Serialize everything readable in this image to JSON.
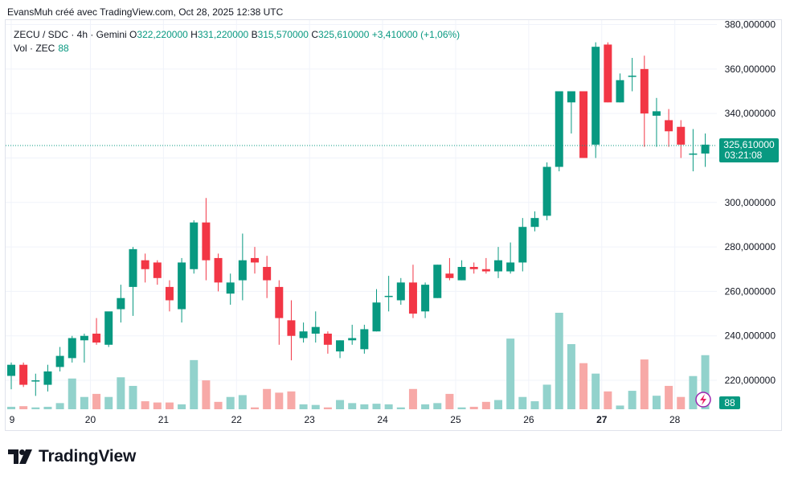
{
  "header": {
    "caption": "EvansMuh créé avec TradingView.com, Oct 28, 2025 12:38 UTC"
  },
  "legend": {
    "symbol": "ZECU / SDC · 4h · Gemini",
    "open_label": "O",
    "open": "322,220000",
    "high_label": "H",
    "high": "331,220000",
    "low_label": "B",
    "low": "315,570000",
    "close_label": "C",
    "close": "325,610000",
    "change": "+3,410000 (+1,06%)",
    "vol_label": "Vol · ZEC",
    "vol_value": "88"
  },
  "price_tag": {
    "price": "325,610000",
    "countdown": "03:21:08"
  },
  "vol_tag": "88",
  "brand": {
    "name": "TradingView"
  },
  "colors": {
    "up": "#089981",
    "down": "#f23645",
    "vol_up": "#92d2cc",
    "vol_down": "#f7a9a7",
    "grid": "#f0f3fa",
    "axis_text": "#131722"
  },
  "chart_data": {
    "type": "candlestick",
    "ylim": [
      207,
      382
    ],
    "y_ticks": [
      "220,000000",
      "240,000000",
      "260,000000",
      "280,000000",
      "300,000000",
      "320,000000",
      "340,000000",
      "360,000000",
      "380,000000"
    ],
    "y_tick_values": [
      220,
      240,
      260,
      280,
      300,
      320,
      340,
      360,
      380
    ],
    "x_tick_labels": [
      "9",
      "20",
      "21",
      "22",
      "23",
      "24",
      "25",
      "26",
      "27",
      "28"
    ],
    "x_tick_index": [
      0,
      6.5,
      12.5,
      18.5,
      24.5,
      30.5,
      36.5,
      42.5,
      48.5,
      54.5
    ],
    "bold_tick": "27",
    "last_price": 325.61,
    "candles": [
      {
        "o": 222,
        "h": 228,
        "l": 216,
        "c": 227,
        "v": 4
      },
      {
        "o": 227,
        "h": 228,
        "l": 217,
        "c": 218,
        "v": 5
      },
      {
        "o": 220,
        "h": 223,
        "l": 213,
        "c": 220,
        "v": 3
      },
      {
        "o": 218,
        "h": 227,
        "l": 215,
        "c": 224,
        "v": 4
      },
      {
        "o": 226,
        "h": 235,
        "l": 224,
        "c": 231,
        "v": 10
      },
      {
        "o": 230,
        "h": 240,
        "l": 228,
        "c": 239,
        "v": 50
      },
      {
        "o": 238,
        "h": 241,
        "l": 228,
        "c": 240,
        "v": 20
      },
      {
        "o": 241,
        "h": 248,
        "l": 236,
        "c": 237,
        "v": 25
      },
      {
        "o": 236,
        "h": 250,
        "l": 235,
        "c": 251,
        "v": 20
      },
      {
        "o": 252,
        "h": 263,
        "l": 246,
        "c": 257,
        "v": 52
      },
      {
        "o": 262,
        "h": 280,
        "l": 249,
        "c": 279,
        "v": 38
      },
      {
        "o": 274,
        "h": 277,
        "l": 264,
        "c": 270,
        "v": 13
      },
      {
        "o": 273,
        "h": 274,
        "l": 263,
        "c": 266,
        "v": 11
      },
      {
        "o": 262,
        "h": 265,
        "l": 251,
        "c": 256,
        "v": 11
      },
      {
        "o": 252,
        "h": 275,
        "l": 246,
        "c": 273,
        "v": 8
      },
      {
        "o": 270,
        "h": 292,
        "l": 268,
        "c": 291,
        "v": 80
      },
      {
        "o": 291,
        "h": 302,
        "l": 265,
        "c": 274,
        "v": 47
      },
      {
        "o": 275,
        "h": 277,
        "l": 260,
        "c": 264,
        "v": 12
      },
      {
        "o": 259,
        "h": 268,
        "l": 254,
        "c": 264,
        "v": 20
      },
      {
        "o": 265,
        "h": 286,
        "l": 256,
        "c": 274,
        "v": 23
      },
      {
        "o": 275,
        "h": 280,
        "l": 268,
        "c": 273,
        "v": 3
      },
      {
        "o": 271,
        "h": 276,
        "l": 257,
        "c": 265,
        "v": 33
      },
      {
        "o": 262,
        "h": 265,
        "l": 236,
        "c": 248,
        "v": 27
      },
      {
        "o": 247,
        "h": 256,
        "l": 229,
        "c": 240,
        "v": 29
      },
      {
        "o": 239,
        "h": 246,
        "l": 237,
        "c": 242,
        "v": 8
      },
      {
        "o": 241,
        "h": 251,
        "l": 237,
        "c": 244,
        "v": 7
      },
      {
        "o": 241,
        "h": 242,
        "l": 232,
        "c": 236,
        "v": 3
      },
      {
        "o": 233,
        "h": 238,
        "l": 230,
        "c": 238,
        "v": 15
      },
      {
        "o": 238,
        "h": 245,
        "l": 236,
        "c": 239,
        "v": 10
      },
      {
        "o": 234,
        "h": 245,
        "l": 232,
        "c": 243,
        "v": 8
      },
      {
        "o": 242,
        "h": 261,
        "l": 242,
        "c": 255,
        "v": 9
      },
      {
        "o": 258,
        "h": 267,
        "l": 251,
        "c": 258,
        "v": 8
      },
      {
        "o": 256,
        "h": 266,
        "l": 254,
        "c": 264,
        "v": 3
      },
      {
        "o": 264,
        "h": 272,
        "l": 248,
        "c": 250,
        "v": 33
      },
      {
        "o": 251,
        "h": 264,
        "l": 248,
        "c": 263,
        "v": 8
      },
      {
        "o": 257,
        "h": 272,
        "l": 257,
        "c": 272,
        "v": 10
      },
      {
        "o": 268,
        "h": 275,
        "l": 265,
        "c": 266,
        "v": 25
      },
      {
        "o": 265,
        "h": 274,
        "l": 265,
        "c": 271,
        "v": 3
      },
      {
        "o": 271,
        "h": 273,
        "l": 268,
        "c": 270,
        "v": 4
      },
      {
        "o": 270,
        "h": 275,
        "l": 268,
        "c": 269,
        "v": 12
      },
      {
        "o": 269,
        "h": 280,
        "l": 266,
        "c": 274,
        "v": 15
      },
      {
        "o": 269,
        "h": 282,
        "l": 268,
        "c": 273,
        "v": 115
      },
      {
        "o": 273,
        "h": 293,
        "l": 269,
        "c": 289,
        "v": 20
      },
      {
        "o": 289,
        "h": 296,
        "l": 287,
        "c": 293,
        "v": 13
      },
      {
        "o": 294,
        "h": 318,
        "l": 292,
        "c": 316,
        "v": 40
      },
      {
        "o": 316,
        "h": 350,
        "l": 314,
        "c": 350,
        "v": 157
      },
      {
        "o": 345,
        "h": 350,
        "l": 331,
        "c": 350,
        "v": 106
      },
      {
        "o": 350,
        "h": 350,
        "l": 320,
        "c": 320,
        "v": 75
      },
      {
        "o": 326,
        "h": 372,
        "l": 320,
        "c": 370,
        "v": 58
      },
      {
        "o": 371,
        "h": 372,
        "l": 345,
        "c": 345,
        "v": 29
      },
      {
        "o": 345,
        "h": 358,
        "l": 345,
        "c": 355,
        "v": 6
      },
      {
        "o": 357,
        "h": 365,
        "l": 350,
        "c": 357,
        "v": 30
      },
      {
        "o": 360,
        "h": 366,
        "l": 325,
        "c": 340,
        "v": 81
      },
      {
        "o": 339,
        "h": 347,
        "l": 325,
        "c": 341,
        "v": 22
      },
      {
        "o": 337,
        "h": 342,
        "l": 325,
        "c": 332,
        "v": 38
      },
      {
        "o": 334,
        "h": 337,
        "l": 320,
        "c": 326,
        "v": 20
      },
      {
        "o": 322,
        "h": 333,
        "l": 314,
        "c": 322,
        "v": 54
      },
      {
        "o": 322,
        "h": 331,
        "l": 316,
        "c": 326,
        "v": 88
      }
    ]
  }
}
